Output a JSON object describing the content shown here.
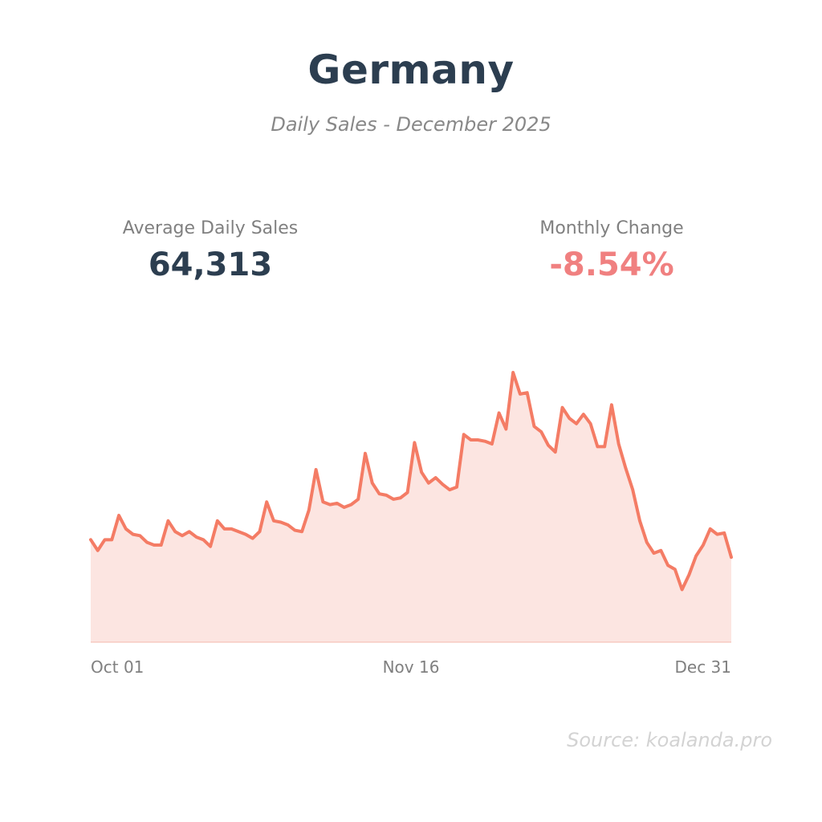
{
  "title": "Germany",
  "subtitle": "Daily Sales - December 2025",
  "kpis": {
    "average": {
      "label": "Average Daily Sales",
      "value": "64,313"
    },
    "change": {
      "label": "Monthly Change",
      "value": "-8.54%"
    }
  },
  "source": "Source: koalanda.pro",
  "colors": {
    "title": "#2c3e50",
    "line": "#f47c65",
    "fill": "#fce5e1",
    "negative": "#f08080",
    "muted": "#808080"
  },
  "chart_data": {
    "type": "area",
    "title": "Daily Sales - December 2025",
    "xlabel": "",
    "ylabel": "",
    "x_range": [
      "2025-10-01",
      "2025-12-31"
    ],
    "x_ticks": [
      "Oct 01",
      "Nov 16",
      "Dec 31"
    ],
    "ylim": [
      0,
      100000
    ],
    "grid": false,
    "legend": "none",
    "series": [
      {
        "name": "Daily Sales",
        "values": [
          38000,
          34000,
          38000,
          38000,
          47000,
          42000,
          40000,
          39500,
          37000,
          36000,
          36000,
          45000,
          41000,
          39500,
          41000,
          39000,
          38000,
          35500,
          45000,
          42000,
          42000,
          41000,
          40000,
          38500,
          41000,
          52000,
          45000,
          44500,
          43500,
          41500,
          41000,
          49000,
          64000,
          52000,
          51000,
          51500,
          50000,
          51000,
          53000,
          70000,
          59000,
          55000,
          54500,
          53000,
          53500,
          55500,
          74000,
          63000,
          59000,
          61000,
          58500,
          56500,
          57500,
          77000,
          75000,
          75000,
          74500,
          73500,
          85000,
          79000,
          100000,
          92000,
          92500,
          80000,
          78000,
          73000,
          70500,
          87000,
          83000,
          81000,
          84500,
          81000,
          72500,
          72500,
          88000,
          73500,
          64500,
          56500,
          45000,
          37000,
          33000,
          34000,
          28500,
          27000,
          19500,
          25000,
          32000,
          36000,
          42000,
          40000,
          40500,
          31500
        ]
      }
    ]
  }
}
